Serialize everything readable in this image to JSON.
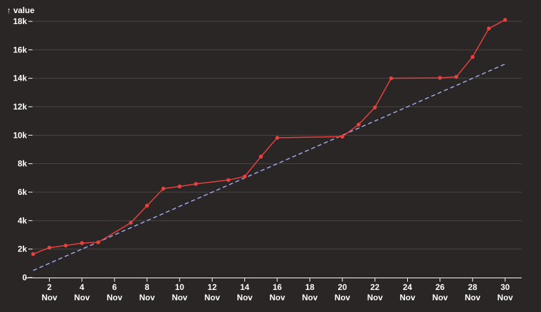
{
  "chart_data": {
    "type": "line",
    "ylabel": "↑ value",
    "ylim": [
      0,
      18000
    ],
    "xlim": [
      "2023-11-01",
      "2023-11-30"
    ],
    "grid": {
      "horizontal": true,
      "vertical": false
    },
    "x_ticks": [
      {
        "date": "2023-11-02",
        "day": "2",
        "month": "Nov"
      },
      {
        "date": "2023-11-04",
        "day": "4",
        "month": "Nov"
      },
      {
        "date": "2023-11-06",
        "day": "6",
        "month": "Nov"
      },
      {
        "date": "2023-11-08",
        "day": "8",
        "month": "Nov"
      },
      {
        "date": "2023-11-10",
        "day": "10",
        "month": "Nov"
      },
      {
        "date": "2023-11-12",
        "day": "12",
        "month": "Nov"
      },
      {
        "date": "2023-11-14",
        "day": "14",
        "month": "Nov"
      },
      {
        "date": "2023-11-16",
        "day": "16",
        "month": "Nov"
      },
      {
        "date": "2023-11-18",
        "day": "18",
        "month": "Nov"
      },
      {
        "date": "2023-11-20",
        "day": "20",
        "month": "Nov"
      },
      {
        "date": "2023-11-22",
        "day": "22",
        "month": "Nov"
      },
      {
        "date": "2023-11-24",
        "day": "24",
        "month": "Nov"
      },
      {
        "date": "2023-11-26",
        "day": "26",
        "month": "Nov"
      },
      {
        "date": "2023-11-28",
        "day": "28",
        "month": "Nov"
      },
      {
        "date": "2023-11-30",
        "day": "30",
        "month": "Nov"
      }
    ],
    "y_ticks": [
      {
        "value": 0,
        "label": "0"
      },
      {
        "value": 2000,
        "label": "2k"
      },
      {
        "value": 4000,
        "label": "4k"
      },
      {
        "value": 6000,
        "label": "6k"
      },
      {
        "value": 8000,
        "label": "8k"
      },
      {
        "value": 10000,
        "label": "10k"
      },
      {
        "value": 12000,
        "label": "12k"
      },
      {
        "value": 14000,
        "label": "14k"
      },
      {
        "value": 16000,
        "label": "16k"
      },
      {
        "value": 18000,
        "label": "18k"
      }
    ],
    "series": [
      {
        "color": "#e8413e",
        "style": "solid",
        "markers": true,
        "points": [
          {
            "x": "2023-11-01",
            "y": 1650
          },
          {
            "x": "2023-11-02",
            "y": 2100
          },
          {
            "x": "2023-11-03",
            "y": 2250
          },
          {
            "x": "2023-11-04",
            "y": 2420
          },
          {
            "x": "2023-11-05",
            "y": 2480
          },
          {
            "x": "2023-11-07",
            "y": 3850
          },
          {
            "x": "2023-11-08",
            "y": 5050
          },
          {
            "x": "2023-11-09",
            "y": 6250
          },
          {
            "x": "2023-11-10",
            "y": 6400
          },
          {
            "x": "2023-11-11",
            "y": 6580
          },
          {
            "x": "2023-11-13",
            "y": 6850
          },
          {
            "x": "2023-11-14",
            "y": 7100
          },
          {
            "x": "2023-11-15",
            "y": 8500
          },
          {
            "x": "2023-11-16",
            "y": 9820
          },
          {
            "x": "2023-11-20",
            "y": 9900
          },
          {
            "x": "2023-11-21",
            "y": 10750
          },
          {
            "x": "2023-11-22",
            "y": 11950
          },
          {
            "x": "2023-11-23",
            "y": 14000
          },
          {
            "x": "2023-11-26",
            "y": 14030
          },
          {
            "x": "2023-11-27",
            "y": 14100
          },
          {
            "x": "2023-11-28",
            "y": 15500
          },
          {
            "x": "2023-11-29",
            "y": 17500
          },
          {
            "x": "2023-11-30",
            "y": 18100
          }
        ]
      },
      {
        "color": "#a0a8ee",
        "style": "dashed",
        "markers": false,
        "points": [
          {
            "x": "2023-11-01",
            "y": 500
          },
          {
            "x": "2023-11-30",
            "y": 15000
          }
        ]
      }
    ]
  }
}
